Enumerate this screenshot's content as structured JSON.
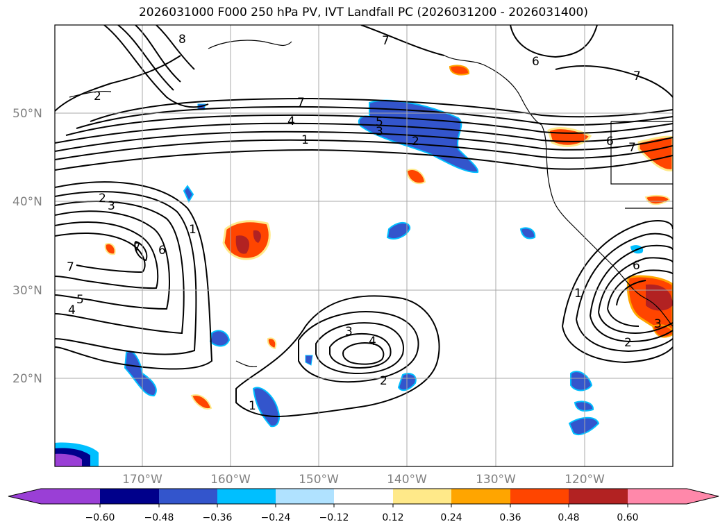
{
  "title": "2026031000 F000 250 hPa PV, IVT Landfall PC (2026031200 - 2026031400)",
  "lon_labels": [
    "170°W",
    "160°W",
    "150°W",
    "140°W",
    "130°W",
    "120°W"
  ],
  "lat_labels": [
    "50°N",
    "40°N",
    "30°N",
    "20°N"
  ],
  "colorbar": {
    "ticks": [
      "−0.60",
      "−0.48",
      "−0.36",
      "−0.24",
      "−0.12",
      "0.12",
      "0.24",
      "0.36",
      "0.48",
      "0.60"
    ],
    "colors": [
      "#9a3fd6",
      "#00008b",
      "#3355cc",
      "#00bfff",
      "#b0e2ff",
      "#ffffff",
      "#ffe989",
      "#ffa500",
      "#ff4500",
      "#b22222",
      "#ff88aa"
    ]
  },
  "contour_labels": [
    {
      "text": "8"
    },
    {
      "text": "7"
    },
    {
      "text": "6"
    },
    {
      "text": "7"
    },
    {
      "text": "2"
    },
    {
      "text": "7"
    },
    {
      "text": "4"
    },
    {
      "text": "1"
    },
    {
      "text": "5"
    },
    {
      "text": "3"
    },
    {
      "text": "2"
    },
    {
      "text": "6"
    },
    {
      "text": "7"
    },
    {
      "text": "2"
    },
    {
      "text": "3"
    },
    {
      "text": "1"
    },
    {
      "text": "7"
    },
    {
      "text": "6"
    },
    {
      "text": "7"
    },
    {
      "text": "5"
    },
    {
      "text": "4"
    },
    {
      "text": "3"
    },
    {
      "text": "4"
    },
    {
      "text": "2"
    },
    {
      "text": "1"
    },
    {
      "text": "1"
    },
    {
      "text": "6"
    },
    {
      "text": "2"
    },
    {
      "text": "3"
    }
  ]
}
